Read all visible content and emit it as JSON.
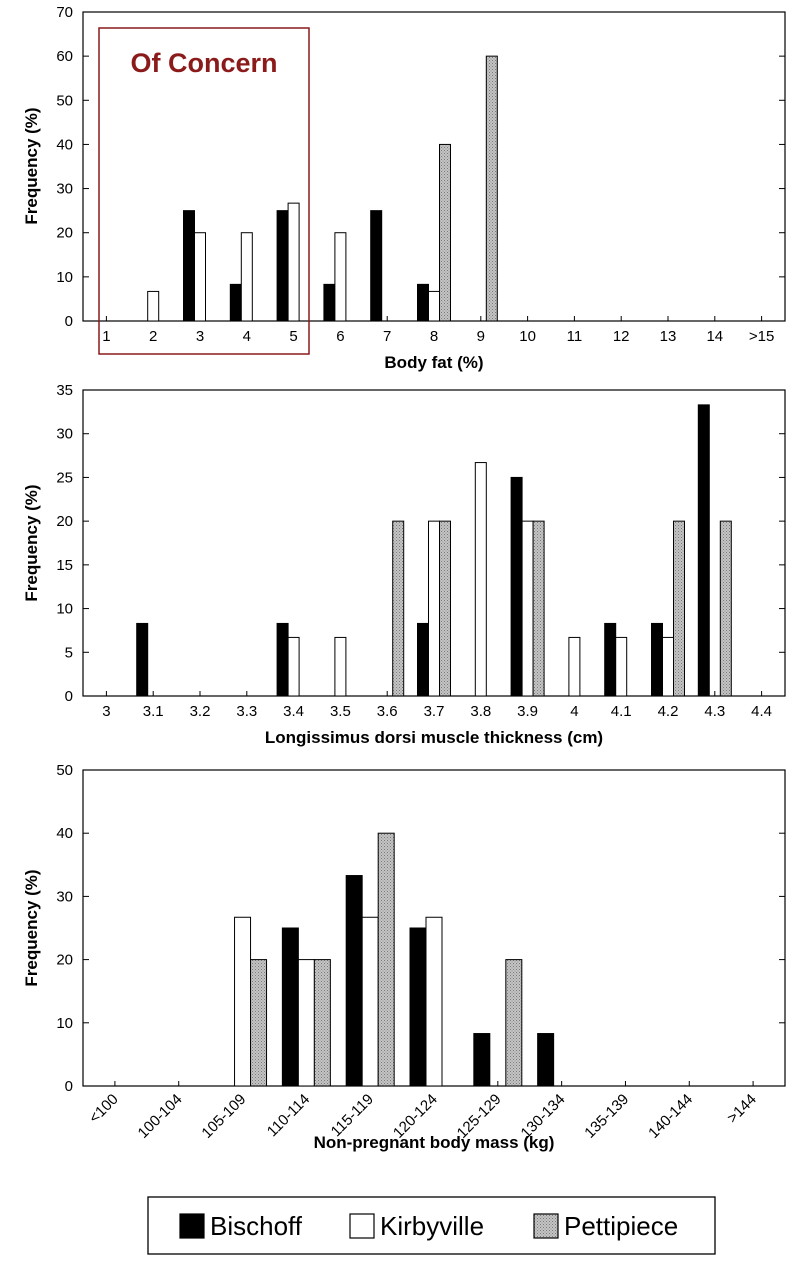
{
  "colors": {
    "Bischoff": "#000000",
    "Kirbyville": "#ffffff",
    "Pettipiece": "#b8b8b8",
    "concern": "#8b1a1a"
  },
  "legend": {
    "items": [
      "Bischoff",
      "Kirbyville",
      "Pettipiece"
    ],
    "placement": "bottom-center"
  },
  "annotation": {
    "text": "Of Concern",
    "chart": 0,
    "categories": [
      "1",
      "2",
      "3",
      "4",
      "5"
    ]
  },
  "chart_data": [
    {
      "type": "bar",
      "xlabel": "Body fat (%)",
      "ylabel": "Frequency (%)",
      "ylim": [
        0,
        70
      ],
      "yticks": [
        0,
        10,
        20,
        30,
        40,
        50,
        60,
        70
      ],
      "grid": false,
      "categories": [
        "1",
        "2",
        "3",
        "4",
        "5",
        "6",
        "7",
        "8",
        "9",
        "10",
        "11",
        "12",
        "13",
        "14",
        ">15"
      ],
      "series": [
        {
          "name": "Bischoff",
          "values": [
            0,
            0,
            25,
            8.3,
            25,
            8.3,
            25,
            8.3,
            0,
            0,
            0,
            0,
            0,
            0,
            0
          ]
        },
        {
          "name": "Kirbyville",
          "values": [
            0,
            6.7,
            20,
            20,
            26.7,
            20,
            0,
            6.7,
            0,
            0,
            0,
            0,
            0,
            0,
            0
          ]
        },
        {
          "name": "Pettipiece",
          "values": [
            0,
            0,
            0,
            0,
            0,
            0,
            0,
            40,
            60,
            0,
            0,
            0,
            0,
            0,
            0
          ]
        }
      ]
    },
    {
      "type": "bar",
      "xlabel": "Longissimus dorsi muscle thickness (cm)",
      "ylabel": "Frequency (%)",
      "ylim": [
        0,
        35
      ],
      "yticks": [
        0,
        5,
        10,
        15,
        20,
        25,
        30,
        35
      ],
      "grid": false,
      "categories": [
        "3",
        "3.1",
        "3.2",
        "3.3",
        "3.4",
        "3.5",
        "3.6",
        "3.7",
        "3.8",
        "3.9",
        "4",
        "4.1",
        "4.2",
        "4.3",
        "4.4"
      ],
      "series": [
        {
          "name": "Bischoff",
          "values": [
            0,
            8.3,
            0,
            0,
            8.3,
            0,
            0,
            8.3,
            0,
            25,
            0,
            8.3,
            8.3,
            33.3,
            0
          ]
        },
        {
          "name": "Kirbyville",
          "values": [
            0,
            0,
            0,
            0,
            6.7,
            6.7,
            0,
            20,
            26.7,
            20,
            6.7,
            6.7,
            6.7,
            0,
            0
          ]
        },
        {
          "name": "Pettipiece",
          "values": [
            0,
            0,
            0,
            0,
            0,
            0,
            20,
            20,
            0,
            20,
            0,
            0,
            20,
            20,
            0
          ]
        }
      ]
    },
    {
      "type": "bar",
      "xlabel": "Non-pregnant body mass (kg)",
      "ylabel": "Frequency (%)",
      "ylim": [
        0,
        50
      ],
      "yticks": [
        0,
        10,
        20,
        30,
        40,
        50
      ],
      "grid": false,
      "categories": [
        "<100",
        "100-104",
        "105-109",
        "110-114",
        "115-119",
        "120-124",
        "125-129",
        "130-134",
        "135-139",
        "140-144",
        ">144"
      ],
      "series": [
        {
          "name": "Bischoff",
          "values": [
            0,
            0,
            0,
            25,
            33.3,
            25,
            8.3,
            8.3,
            0,
            0,
            0
          ]
        },
        {
          "name": "Kirbyville",
          "values": [
            0,
            0,
            26.7,
            20,
            26.7,
            26.7,
            0,
            0,
            0,
            0,
            0
          ]
        },
        {
          "name": "Pettipiece",
          "values": [
            0,
            0,
            20,
            20,
            40,
            0,
            20,
            0,
            0,
            0,
            0
          ]
        }
      ]
    }
  ]
}
